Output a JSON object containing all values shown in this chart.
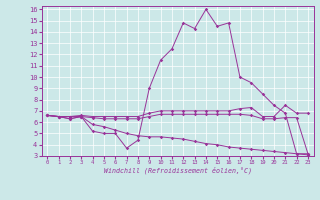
{
  "background_color": "#cce8e8",
  "line_color": "#993399",
  "xlim_min": -0.5,
  "xlim_max": 23.5,
  "ylim_min": 3.0,
  "ylim_max": 16.3,
  "yticks": [
    3,
    4,
    5,
    6,
    7,
    8,
    9,
    10,
    11,
    12,
    13,
    14,
    15,
    16
  ],
  "xticks": [
    0,
    1,
    2,
    3,
    4,
    5,
    6,
    7,
    8,
    9,
    10,
    11,
    12,
    13,
    14,
    15,
    16,
    17,
    18,
    19,
    20,
    21,
    22,
    23
  ],
  "xlabel": "Windchill (Refroidissement éolien,°C)",
  "line1_x": [
    0,
    1,
    2,
    3,
    4,
    5,
    6,
    7,
    8,
    9,
    10,
    11,
    12,
    13,
    14,
    15,
    16,
    17,
    18,
    19,
    20,
    21,
    22,
    23
  ],
  "line1_y": [
    6.6,
    6.5,
    6.3,
    6.5,
    5.2,
    5.0,
    5.0,
    3.7,
    4.4,
    9.0,
    11.5,
    12.5,
    14.8,
    14.3,
    16.0,
    14.5,
    14.8,
    10.0,
    9.5,
    8.5,
    7.5,
    6.8,
    3.2,
    3.2
  ],
  "line2_x": [
    0,
    1,
    2,
    3,
    4,
    5,
    6,
    7,
    8,
    9,
    10,
    11,
    12,
    13,
    14,
    15,
    16,
    17,
    18,
    19,
    20,
    21,
    22,
    23
  ],
  "line2_y": [
    6.6,
    6.5,
    6.5,
    6.6,
    6.5,
    6.5,
    6.5,
    6.5,
    6.5,
    6.8,
    7.0,
    7.0,
    7.0,
    7.0,
    7.0,
    7.0,
    7.0,
    7.2,
    7.3,
    6.5,
    6.5,
    7.5,
    6.8,
    6.8
  ],
  "line3_x": [
    0,
    1,
    2,
    3,
    4,
    5,
    6,
    7,
    8,
    9,
    10,
    11,
    12,
    13,
    14,
    15,
    16,
    17,
    18,
    19,
    20,
    21,
    22,
    23
  ],
  "line3_y": [
    6.6,
    6.5,
    6.5,
    6.5,
    6.4,
    6.3,
    6.3,
    6.3,
    6.3,
    6.5,
    6.7,
    6.7,
    6.7,
    6.7,
    6.7,
    6.7,
    6.7,
    6.7,
    6.6,
    6.3,
    6.3,
    6.4,
    6.4,
    3.2
  ],
  "line4_x": [
    0,
    1,
    2,
    3,
    4,
    5,
    6,
    7,
    8,
    9,
    10,
    11,
    12,
    13,
    14,
    15,
    16,
    17,
    18,
    19,
    20,
    21,
    22,
    23
  ],
  "line4_y": [
    6.6,
    6.5,
    6.3,
    6.5,
    5.8,
    5.6,
    5.3,
    5.0,
    4.8,
    4.7,
    4.7,
    4.6,
    4.5,
    4.3,
    4.1,
    4.0,
    3.8,
    3.7,
    3.6,
    3.5,
    3.4,
    3.3,
    3.2,
    3.1
  ]
}
